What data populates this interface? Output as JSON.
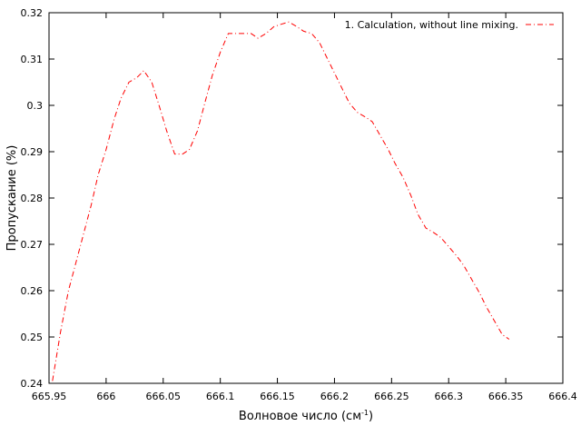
{
  "chart_data": {
    "type": "line",
    "title": "",
    "xlabel": "Волновое число (см",
    "xlabel_sup": "-1",
    "xlabel_close": ")",
    "ylabel": "Пропускание (%)",
    "xlim": [
      665.95,
      666.4
    ],
    "ylim": [
      0.24,
      0.32
    ],
    "x_ticks": [
      665.95,
      666,
      666.05,
      666.1,
      666.15,
      666.2,
      666.25,
      666.3,
      666.35,
      666.4
    ],
    "x_tick_labels": [
      "665.95",
      "666",
      "666.05",
      "666.1",
      "666.15",
      "666.2",
      "666.25",
      "666.3",
      "666.35",
      "666.4"
    ],
    "y_ticks": [
      0.24,
      0.25,
      0.26,
      0.27,
      0.28,
      0.29,
      0.3,
      0.31,
      0.32
    ],
    "y_tick_labels": [
      "0.24",
      "0.25",
      "0.26",
      "0.27",
      "0.28",
      "0.29",
      "0.3",
      "0.31",
      "0.32"
    ],
    "grid": false,
    "legend_position": "top-right",
    "series": [
      {
        "name": "1. Calculation, without line mixing.",
        "color": "#ff0000",
        "dash": "dash-dot",
        "x": [
          665.953,
          665.96,
          665.967,
          665.973,
          665.98,
          665.987,
          665.993,
          666.0,
          666.007,
          666.013,
          666.02,
          666.027,
          666.033,
          666.04,
          666.047,
          666.053,
          666.06,
          666.067,
          666.073,
          666.08,
          666.087,
          666.093,
          666.1,
          666.107,
          666.113,
          666.12,
          666.127,
          666.133,
          666.14,
          666.147,
          666.153,
          666.16,
          666.167,
          666.173,
          666.18,
          666.187,
          666.193,
          666.2,
          666.207,
          666.213,
          666.22,
          666.227,
          666.233,
          666.24,
          666.247,
          666.253,
          666.26,
          666.267,
          666.273,
          666.28,
          666.287,
          666.293,
          666.3,
          666.307,
          666.313,
          666.32,
          666.327,
          666.333,
          666.34,
          666.347,
          666.353
        ],
        "y": [
          0.2405,
          0.251,
          0.26,
          0.2655,
          0.272,
          0.2785,
          0.285,
          0.2905,
          0.297,
          0.3015,
          0.305,
          0.306,
          0.3075,
          0.305,
          0.2995,
          0.2945,
          0.2895,
          0.2895,
          0.2905,
          0.2945,
          0.301,
          0.3065,
          0.3115,
          0.3155,
          0.3155,
          0.3155,
          0.3155,
          0.3145,
          0.3155,
          0.317,
          0.3175,
          0.318,
          0.317,
          0.316,
          0.3155,
          0.3135,
          0.3105,
          0.307,
          0.3035,
          0.3005,
          0.2985,
          0.2975,
          0.2965,
          0.2935,
          0.2905,
          0.2875,
          0.2845,
          0.2805,
          0.2765,
          0.2735,
          0.2725,
          0.2715,
          0.2695,
          0.2675,
          0.2655,
          0.2625,
          0.2595,
          0.2565,
          0.2535,
          0.2505,
          0.2495
        ]
      }
    ]
  }
}
